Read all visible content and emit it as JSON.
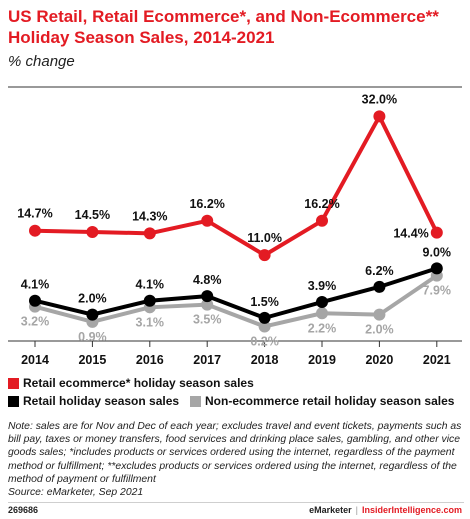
{
  "title": "US Retail, Retail Ecommerce*, and Non-Ecommerce** Holiday Season Sales, 2014-2021",
  "subtitle": "% change",
  "chart_data": {
    "type": "line",
    "title": "US Retail, Retail Ecommerce*, and Non-Ecommerce** Holiday Season Sales, 2014-2021",
    "subtitle": "% change",
    "x": [
      "2014",
      "2015",
      "2016",
      "2017",
      "2018",
      "2019",
      "2020",
      "2021"
    ],
    "ylim": [
      -2,
      36
    ],
    "grid": false,
    "legend_position": "bottom",
    "series": [
      {
        "name": "Retail ecommerce* holiday season sales",
        "color": "#e31b23",
        "values": [
          14.7,
          14.5,
          14.3,
          16.2,
          11.0,
          16.2,
          32.0,
          14.4
        ],
        "labels": [
          "14.7%",
          "14.5%",
          "14.3%",
          "16.2%",
          "11.0%",
          "16.2%",
          "32.0%",
          "14.4%"
        ]
      },
      {
        "name": "Retail holiday season sales",
        "color": "#000000",
        "values": [
          4.1,
          2.0,
          4.1,
          4.8,
          1.5,
          3.9,
          6.2,
          9.0
        ],
        "labels": [
          "4.1%",
          "2.0%",
          "4.1%",
          "4.8%",
          "1.5%",
          "3.9%",
          "6.2%",
          "9.0%"
        ]
      },
      {
        "name": "Non-ecommerce retail holiday season sales",
        "color": "#a6a6a6",
        "values": [
          3.2,
          0.9,
          3.1,
          3.5,
          0.2,
          2.2,
          2.0,
          7.9
        ],
        "labels": [
          "3.2%",
          "0.9%",
          "3.1%",
          "3.5%",
          "0.2%",
          "2.2%",
          "2.0%",
          "7.9%"
        ]
      }
    ]
  },
  "note": "Note: sales are for Nov and Dec of each year; excludes travel and event tickets, payments such as bill pay, taxes or money transfers, food services and drinking place sales, gambling, and other vice goods sales; *includes products or services ordered using the internet, regardless of the payment method or fulfillment; **excludes products or services ordered using the internet, regardless of the method of payment or fulfillment",
  "source": "Source: eMarketer, Sep 2021",
  "footer": {
    "id": "269686",
    "brand1": "eMarketer",
    "brand2": "InsiderIntelligence.com"
  }
}
